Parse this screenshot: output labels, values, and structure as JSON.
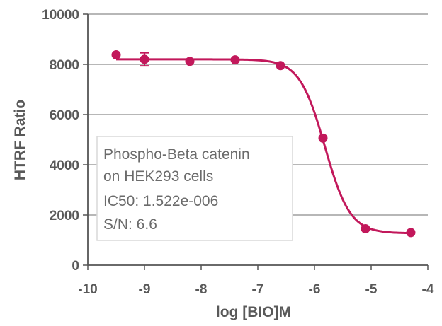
{
  "chart_data": {
    "type": "scatter",
    "xlabel": "log [BIO]M",
    "ylabel": "HTRF Ratio",
    "xlim": [
      -10,
      -4
    ],
    "ylim": [
      0,
      10000
    ],
    "x_ticks": [
      "-10",
      "-9",
      "-8",
      "-7",
      "-6",
      "-5",
      "-4"
    ],
    "y_ticks": [
      "0",
      "2000",
      "4000",
      "6000",
      "8000",
      "10000"
    ],
    "grid": "horizontal",
    "series": [
      {
        "x": [
          -9.5,
          -9.0,
          -8.2,
          -7.4,
          -6.6,
          -5.85,
          -5.1,
          -4.3
        ],
        "y": [
          8380,
          8200,
          8120,
          8180,
          7950,
          5060,
          1450,
          1300
        ],
        "error": [
          0,
          260,
          0,
          0,
          0,
          0,
          0,
          0
        ]
      }
    ],
    "fit_curve": {
      "top": 8200,
      "bottom": 1270,
      "log_ic50": -5.8177,
      "hill_slope": -1.95
    },
    "annotation": [
      "Phospho-Beta catenin",
      "on HEK293 cells",
      "IC50: 1.522e-006",
      "S/N: 6.6"
    ],
    "colors": {
      "series": "#c2185b",
      "grid": "#8c8c8c",
      "axis": "#555555",
      "text": "#595959"
    }
  }
}
